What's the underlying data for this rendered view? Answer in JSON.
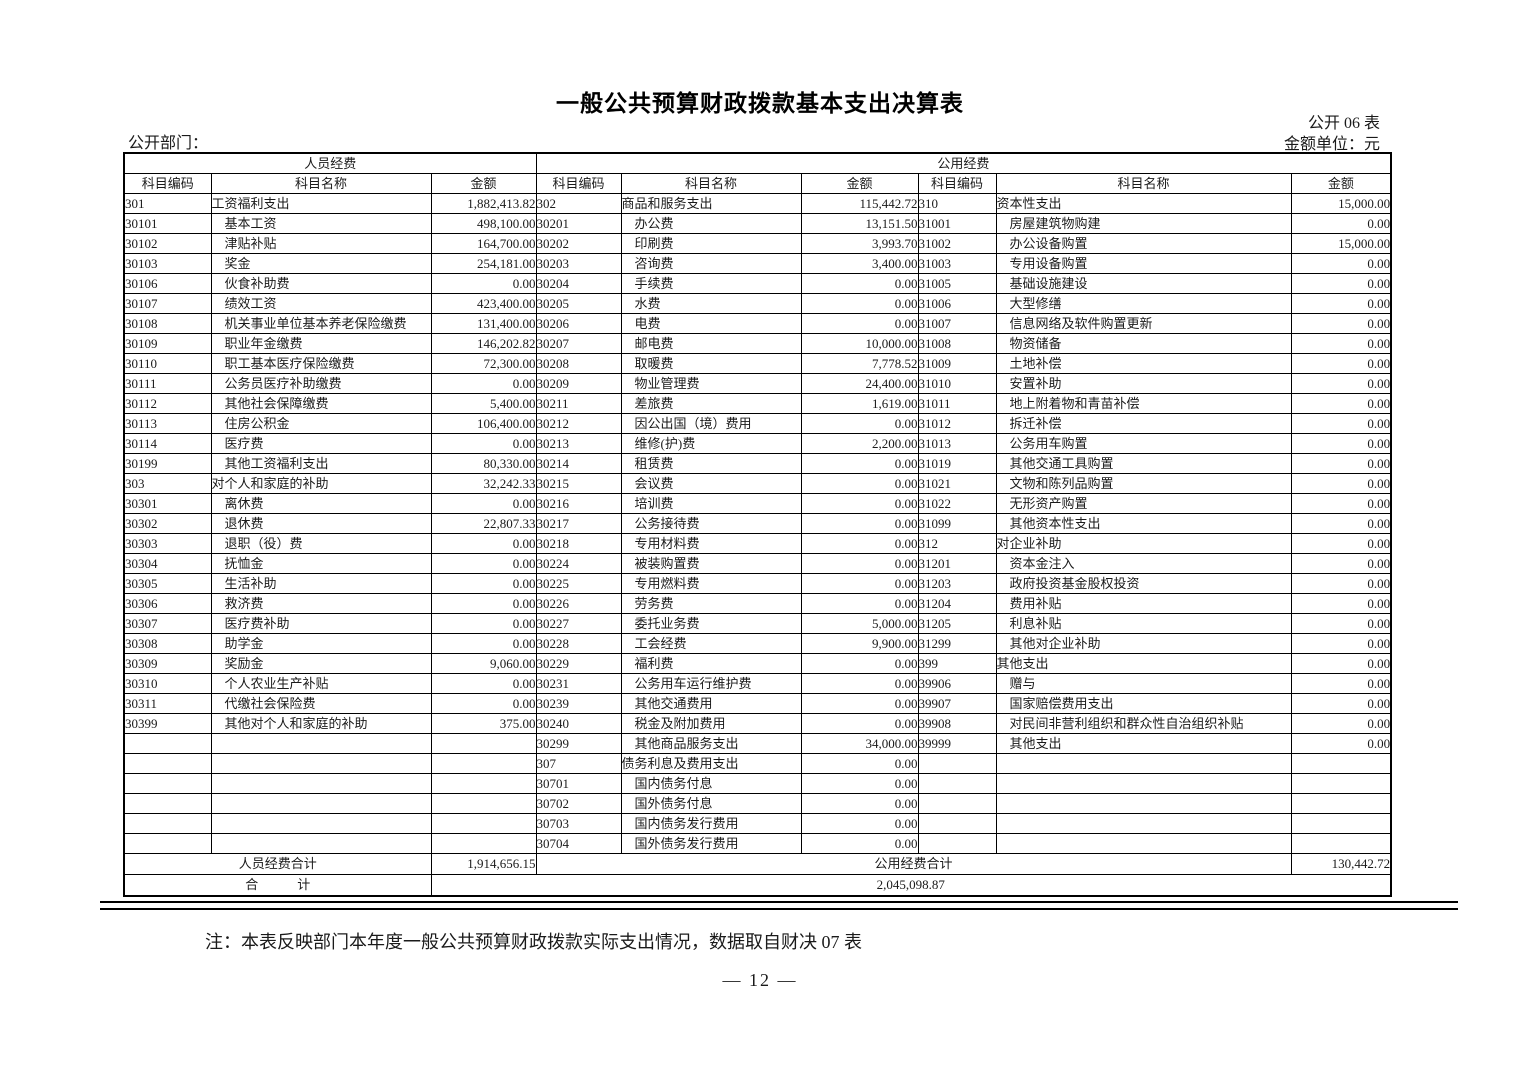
{
  "header": {
    "title": "一般公共预算财政拨款基本支出决算表",
    "form_no": "公开 06 表",
    "unit": "金额单位：元",
    "department": "公开部门："
  },
  "table": {
    "group_headers": [
      "人员经费",
      "公用经费"
    ],
    "col_headers": [
      "科目编码",
      "科目名称",
      "金额",
      "科目编码",
      "科目名称",
      "金额",
      "科目编码",
      "科目名称",
      "金额"
    ],
    "rows": [
      [
        "301",
        "工资福利支出",
        "1,882,413.82",
        "302",
        "商品和服务支出",
        "115,442.72",
        "310",
        "资本性支出",
        "15,000.00"
      ],
      [
        "30101",
        "　基本工资",
        "498,100.00",
        "30201",
        "　办公费",
        "13,151.50",
        "31001",
        "　房屋建筑物购建",
        "0.00"
      ],
      [
        "30102",
        "　津贴补贴",
        "164,700.00",
        "30202",
        "　印刷费",
        "3,993.70",
        "31002",
        "　办公设备购置",
        "15,000.00"
      ],
      [
        "30103",
        "　奖金",
        "254,181.00",
        "30203",
        "　咨询费",
        "3,400.00",
        "31003",
        "　专用设备购置",
        "0.00"
      ],
      [
        "30106",
        "　伙食补助费",
        "0.00",
        "30204",
        "　手续费",
        "0.00",
        "31005",
        "　基础设施建设",
        "0.00"
      ],
      [
        "30107",
        "　绩效工资",
        "423,400.00",
        "30205",
        "　水费",
        "0.00",
        "31006",
        "　大型修缮",
        "0.00"
      ],
      [
        "30108",
        "　机关事业单位基本养老保险缴费",
        "131,400.00",
        "30206",
        "　电费",
        "0.00",
        "31007",
        "　信息网络及软件购置更新",
        "0.00"
      ],
      [
        "30109",
        "　职业年金缴费",
        "146,202.82",
        "30207",
        "　邮电费",
        "10,000.00",
        "31008",
        "　物资储备",
        "0.00"
      ],
      [
        "30110",
        "　职工基本医疗保险缴费",
        "72,300.00",
        "30208",
        "　取暖费",
        "7,778.52",
        "31009",
        "　土地补偿",
        "0.00"
      ],
      [
        "30111",
        "　公务员医疗补助缴费",
        "0.00",
        "30209",
        "　物业管理费",
        "24,400.00",
        "31010",
        "　安置补助",
        "0.00"
      ],
      [
        "30112",
        "　其他社会保障缴费",
        "5,400.00",
        "30211",
        "　差旅费",
        "1,619.00",
        "31011",
        "　地上附着物和青苗补偿",
        "0.00"
      ],
      [
        "30113",
        "　住房公积金",
        "106,400.00",
        "30212",
        "　因公出国（境）费用",
        "0.00",
        "31012",
        "　拆迁补偿",
        "0.00"
      ],
      [
        "30114",
        "　医疗费",
        "0.00",
        "30213",
        "　维修(护)费",
        "2,200.00",
        "31013",
        "　公务用车购置",
        "0.00"
      ],
      [
        "30199",
        "　其他工资福利支出",
        "80,330.00",
        "30214",
        "　租赁费",
        "0.00",
        "31019",
        "　其他交通工具购置",
        "0.00"
      ],
      [
        "303",
        "对个人和家庭的补助",
        "32,242.33",
        "30215",
        "　会议费",
        "0.00",
        "31021",
        "　文物和陈列品购置",
        "0.00"
      ],
      [
        "30301",
        "　离休费",
        "0.00",
        "30216",
        "　培训费",
        "0.00",
        "31022",
        "　无形资产购置",
        "0.00"
      ],
      [
        "30302",
        "　退休费",
        "22,807.33",
        "30217",
        "　公务接待费",
        "0.00",
        "31099",
        "　其他资本性支出",
        "0.00"
      ],
      [
        "30303",
        "　退职（役）费",
        "0.00",
        "30218",
        "　专用材料费",
        "0.00",
        "312",
        "对企业补助",
        "0.00"
      ],
      [
        "30304",
        "　抚恤金",
        "0.00",
        "30224",
        "　被装购置费",
        "0.00",
        "31201",
        "　资本金注入",
        "0.00"
      ],
      [
        "30305",
        "　生活补助",
        "0.00",
        "30225",
        "　专用燃料费",
        "0.00",
        "31203",
        "　政府投资基金股权投资",
        "0.00"
      ],
      [
        "30306",
        "　救济费",
        "0.00",
        "30226",
        "　劳务费",
        "0.00",
        "31204",
        "　费用补贴",
        "0.00"
      ],
      [
        "30307",
        "　医疗费补助",
        "0.00",
        "30227",
        "　委托业务费",
        "5,000.00",
        "31205",
        "　利息补贴",
        "0.00"
      ],
      [
        "30308",
        "　助学金",
        "0.00",
        "30228",
        "　工会经费",
        "9,900.00",
        "31299",
        "　其他对企业补助",
        "0.00"
      ],
      [
        "30309",
        "　奖励金",
        "9,060.00",
        "30229",
        "　福利费",
        "0.00",
        "399",
        "其他支出",
        "0.00"
      ],
      [
        "30310",
        "　个人农业生产补贴",
        "0.00",
        "30231",
        "　公务用车运行维护费",
        "0.00",
        "39906",
        "　赠与",
        "0.00"
      ],
      [
        "30311",
        "　代缴社会保险费",
        "0.00",
        "30239",
        "　其他交通费用",
        "0.00",
        "39907",
        "　国家赔偿费用支出",
        "0.00"
      ],
      [
        "30399",
        "　其他对个人和家庭的补助",
        "375.00",
        "30240",
        "　税金及附加费用",
        "0.00",
        "39908",
        "　对民间非营利组织和群众性自治组织补贴",
        "0.00"
      ],
      [
        "",
        "",
        "",
        "30299",
        "　其他商品服务支出",
        "34,000.00",
        "39999",
        "　其他支出",
        "0.00"
      ],
      [
        "",
        "",
        "",
        "307",
        "债务利息及费用支出",
        "0.00",
        "",
        "",
        ""
      ],
      [
        "",
        "",
        "",
        "30701",
        "　国内债务付息",
        "0.00",
        "",
        "",
        ""
      ],
      [
        "",
        "",
        "",
        "30702",
        "　国外债务付息",
        "0.00",
        "",
        "",
        ""
      ],
      [
        "",
        "",
        "",
        "30703",
        "　国内债务发行费用",
        "0.00",
        "",
        "",
        ""
      ],
      [
        "",
        "",
        "",
        "30704",
        "　国外债务发行费用",
        "0.00",
        "",
        "",
        ""
      ]
    ],
    "totals": {
      "personnel_label": "人员经费合计",
      "personnel_amount": "1,914,656.15",
      "public_label": "公用经费合计",
      "public_amount": "130,442.72",
      "grand_label": "合　　　计",
      "grand_amount": "2,045,098.87"
    }
  },
  "footer": {
    "note": "注：本表反映部门本年度一般公共预算财政拨款实际支出情况，数据取自财决 07 表",
    "page_number": "— 12 —"
  }
}
